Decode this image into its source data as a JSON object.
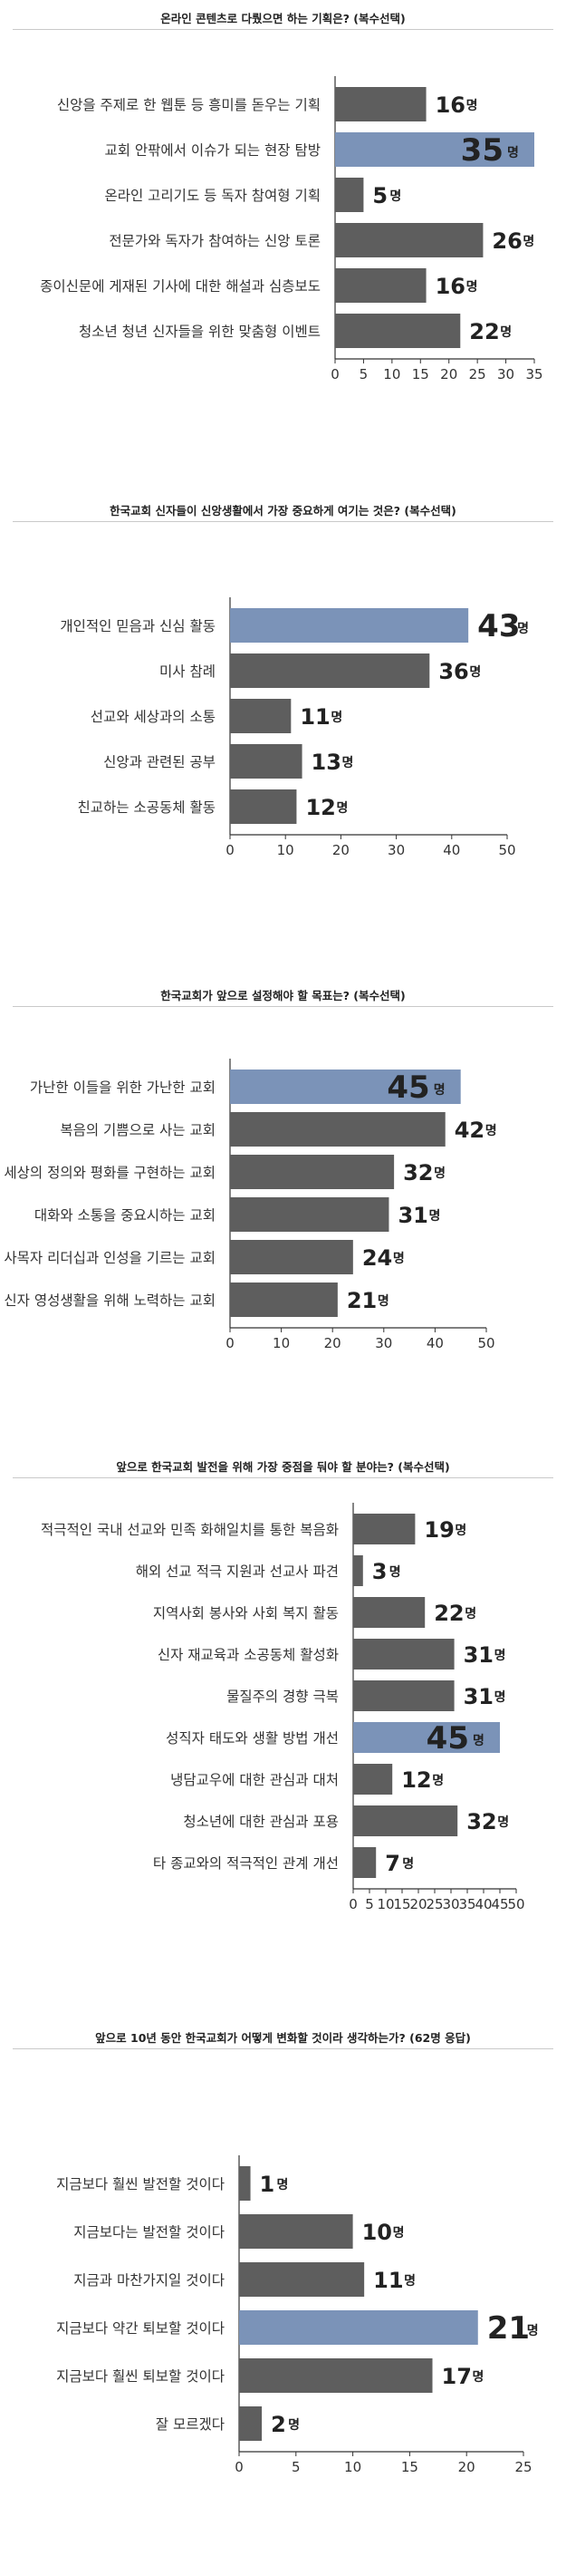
{
  "chart_data": [
    {
      "type": "bar",
      "orientation": "horizontal",
      "title": "온라인 콘텐츠로 다뤘으면 하는 기획은? (복수선택)",
      "categories": [
        "신앙을 주제로 한 웹툰 등 흥미를 돋우는 기획",
        "교회 안팎에서 이슈가 되는 현장 탐방",
        "온라인 고리기도 등 독자 참여형 기획",
        "전문가와 독자가 참여하는 신앙 토론",
        "종이신문에 게재된 기사에 대한 해설과 심층보도",
        "청소년 청년 신자들을 위한 맞춤형 이벤트"
      ],
      "values": [
        16,
        35,
        5,
        26,
        16,
        22
      ],
      "highlight_index": 1,
      "value_unit": "명",
      "xlim": [
        0,
        35
      ],
      "xticks": [
        "0",
        "5",
        "10",
        "15",
        "20",
        "25",
        "30",
        "35"
      ],
      "grid": false
    },
    {
      "type": "bar",
      "orientation": "horizontal",
      "title": "한국교회 신자들이 신앙생활에서 가장 중요하게 여기는 것은? (복수선택)",
      "categories": [
        "개인적인 믿음과 신심 활동",
        "미사 참례",
        "선교와 세상과의 소통",
        "신앙과 관련된 공부",
        "친교하는 소공동체 활동"
      ],
      "values": [
        43,
        36,
        11,
        13,
        12
      ],
      "highlight_index": 0,
      "value_unit": "명",
      "xlim": [
        0,
        50
      ],
      "xticks": [
        "0",
        "10",
        "20",
        "30",
        "40",
        "50"
      ],
      "grid": false
    },
    {
      "type": "bar",
      "orientation": "horizontal",
      "title": "한국교회가 앞으로 설정해야 할 목표는? (복수선택)",
      "categories": [
        "가난한 이들을 위한 가난한 교회",
        "복음의 기쁨으로 사는 교회",
        "세상의 정의와 평화를 구현하는 교회",
        "대화와 소통을 중요시하는 교회",
        "사목자 리더십과 인성을 기르는 교회",
        "신자 영성생활을 위해 노력하는 교회"
      ],
      "values": [
        45,
        42,
        32,
        31,
        24,
        21
      ],
      "highlight_index": 0,
      "value_unit": "명",
      "xlim": [
        0,
        50
      ],
      "xticks": [
        "0",
        "10",
        "20",
        "30",
        "40",
        "50"
      ],
      "grid": false
    },
    {
      "type": "bar",
      "orientation": "horizontal",
      "title": "앞으로 한국교회 발전을 위해 가장 중점을 둬야 할 분야는? (복수선택)",
      "categories": [
        "적극적인 국내 선교와 민족 화해일치를 통한 복음화",
        "해외 선교 적극 지원과 선교사 파견",
        "지역사회 봉사와 사회 복지 활동",
        "신자 재교육과 소공동체 활성화",
        "물질주의 경향 극복",
        "성직자 태도와 생활 방법 개선",
        "냉담교우에 대한 관심과 대처",
        "청소년에 대한 관심과 포용",
        "타 종교와의 적극적인 관계 개선"
      ],
      "values": [
        19,
        3,
        22,
        31,
        31,
        45,
        12,
        32,
        7
      ],
      "highlight_index": 5,
      "value_unit": "명",
      "xlim": [
        0,
        50
      ],
      "xticks": [
        "0",
        "5",
        "10",
        "15",
        "20",
        "25",
        "30",
        "35",
        "40",
        "45",
        "50"
      ],
      "grid": false
    },
    {
      "type": "bar",
      "orientation": "horizontal",
      "title": "앞으로 10년 동안 한국교회가 어떻게 변화할 것이라 생각하는가? (62명 응답)",
      "categories": [
        "지금보다 훨씬 발전할 것이다",
        "지금보다는 발전할 것이다",
        "지금과 마찬가지일 것이다",
        "지금보다 약간 퇴보할 것이다",
        "지금보다 훨씬 퇴보할 것이다",
        "잘 모르겠다"
      ],
      "values": [
        1,
        10,
        11,
        21,
        17,
        2
      ],
      "highlight_index": 3,
      "value_unit": "명",
      "xlim": [
        0,
        25
      ],
      "xticks": [
        "0",
        "5",
        "10",
        "15",
        "20",
        "25"
      ],
      "grid": false
    }
  ],
  "colors": {
    "bar": "#5e5e5e",
    "highlight_bar": "#7b93b8",
    "highlight_value": "#7b93b8",
    "axis": "#333333",
    "rule": "#c9c9c9"
  }
}
